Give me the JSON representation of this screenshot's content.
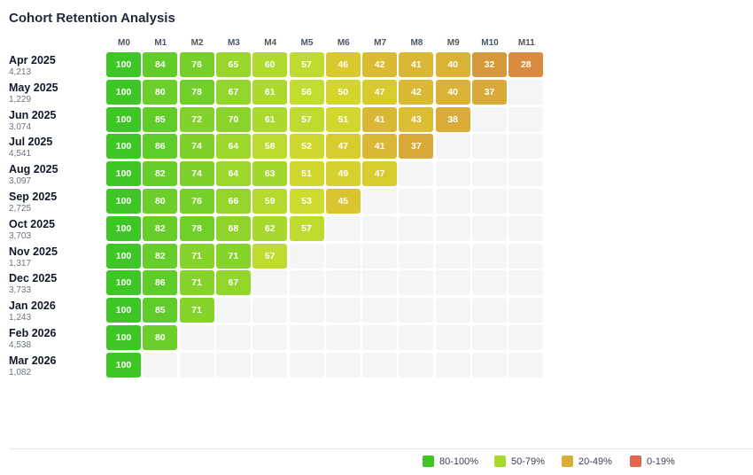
{
  "chart_data": {
    "type": "heatmap",
    "title": "Cohort Retention Analysis",
    "columns": [
      "M0",
      "M1",
      "M2",
      "M3",
      "M4",
      "M5",
      "M6",
      "M7",
      "M8",
      "M9",
      "M10",
      "M11"
    ],
    "rows": [
      {
        "cohort": "Apr 2025",
        "size": "4,213",
        "values": [
          100,
          84,
          76,
          65,
          60,
          57,
          46,
          42,
          41,
          40,
          32,
          28
        ]
      },
      {
        "cohort": "May 2025",
        "size": "1,229",
        "values": [
          100,
          80,
          78,
          67,
          61,
          56,
          50,
          47,
          42,
          40,
          37
        ]
      },
      {
        "cohort": "Jun 2025",
        "size": "3,074",
        "values": [
          100,
          85,
          72,
          70,
          61,
          57,
          51,
          41,
          43,
          38
        ]
      },
      {
        "cohort": "Jul 2025",
        "size": "4,541",
        "values": [
          100,
          86,
          74,
          64,
          58,
          52,
          47,
          41,
          37
        ]
      },
      {
        "cohort": "Aug 2025",
        "size": "3,097",
        "values": [
          100,
          82,
          74,
          64,
          63,
          51,
          49,
          47
        ]
      },
      {
        "cohort": "Sep 2025",
        "size": "2,725",
        "values": [
          100,
          80,
          76,
          66,
          59,
          53,
          45
        ]
      },
      {
        "cohort": "Oct 2025",
        "size": "3,703",
        "values": [
          100,
          82,
          78,
          68,
          62,
          57
        ]
      },
      {
        "cohort": "Nov 2025",
        "size": "1,317",
        "values": [
          100,
          82,
          71,
          71,
          57
        ]
      },
      {
        "cohort": "Dec 2025",
        "size": "3,733",
        "values": [
          100,
          86,
          71,
          67
        ]
      },
      {
        "cohort": "Jan 2026",
        "size": "1,243",
        "values": [
          100,
          85,
          71
        ]
      },
      {
        "cohort": "Feb 2026",
        "size": "4,538",
        "values": [
          100,
          80
        ]
      },
      {
        "cohort": "Mar 2026",
        "size": "1,082",
        "values": [
          100
        ]
      }
    ],
    "legend": [
      {
        "label": "80-100%",
        "color": "#3fc626"
      },
      {
        "label": "50-79%",
        "color": "#a6d92b"
      },
      {
        "label": "20-49%",
        "color": "#d9ad37"
      },
      {
        "label": "0-19%",
        "color": "#e0664e"
      }
    ],
    "legend_position": "bottom-right"
  }
}
